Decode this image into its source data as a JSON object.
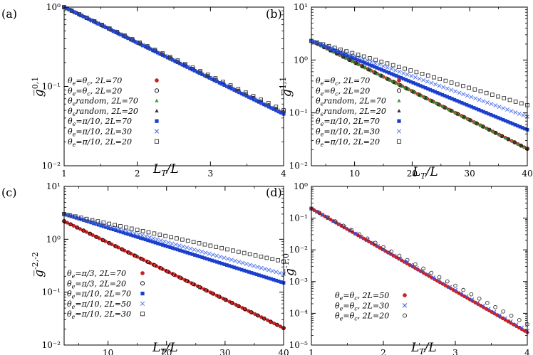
{
  "chart_data": [
    {
      "type": "scatter",
      "panel_label": "(a)",
      "ylabel": "g̅ 0,1",
      "xlabel": "L_T/L",
      "xscale": "linear",
      "yscale": "log",
      "xlim": [
        1,
        4
      ],
      "ylim": [
        0.01,
        1
      ],
      "xticks": [
        1,
        2,
        3,
        4
      ],
      "xtick_labels": [
        "1",
        "2",
        "3",
        "4"
      ],
      "yticks": [
        0.01,
        0.1,
        1
      ],
      "ytick_labels": [
        "10⁻²",
        "10⁻¹",
        "10⁰"
      ],
      "legend_position": "bottom-right",
      "series": [
        {
          "name": "θe=θc, 2L=70",
          "marker": "circle-filled",
          "color": "#cc1f1f",
          "x_start": 1,
          "x_end": 4,
          "y_start": 1.0,
          "y_end": 0.045,
          "n": 60
        },
        {
          "name": "θe=θc, 2L=20",
          "marker": "circle-open",
          "color": "#000000",
          "x_start": 1,
          "x_end": 4,
          "y_start": 1.0,
          "y_end": 0.047,
          "n": 30
        },
        {
          "name": "θe random, 2L=70",
          "marker": "triangle-filled",
          "color": "#2e9e2e",
          "x_start": 1,
          "x_end": 4,
          "y_start": 1.0,
          "y_end": 0.045,
          "n": 60
        },
        {
          "name": "θe random, 2L=20",
          "marker": "triangle-filled",
          "color": "#333333",
          "x_start": 1,
          "x_end": 4,
          "y_start": 1.0,
          "y_end": 0.047,
          "n": 30
        },
        {
          "name": "θe=π/10, 2L=70",
          "marker": "square-filled",
          "color": "#1a3fcc",
          "x_start": 1,
          "x_end": 4,
          "y_start": 1.0,
          "y_end": 0.045,
          "n": 90
        },
        {
          "name": "θe=π/10, 2L=30",
          "marker": "cross",
          "color": "#3355ee",
          "x_start": 1,
          "x_end": 4,
          "y_start": 1.0,
          "y_end": 0.046,
          "n": 40
        },
        {
          "name": "θe=π/10, 2L=20",
          "marker": "square-open",
          "color": "#333333",
          "x_start": 1,
          "x_end": 4,
          "y_start": 1.0,
          "y_end": 0.05,
          "n": 30
        }
      ],
      "legend": [
        {
          "lhs": "θe=θc",
          "rhs": "2L=70",
          "sym": "circle-filled",
          "color": "#cc1f1f"
        },
        {
          "lhs": "θe=θc",
          "rhs": "2L=20",
          "sym": "circle-open",
          "color": "#000000"
        },
        {
          "lhs": "θe:random",
          "rhs": "2L=70",
          "sym": "triangle-filled",
          "color": "#2e9e2e"
        },
        {
          "lhs": "θe:random",
          "rhs": "2L=20",
          "sym": "triangle-filled",
          "color": "#333333"
        },
        {
          "lhs": "θe=π/10",
          "rhs": "2L=70",
          "sym": "square-filled",
          "color": "#1a3fcc"
        },
        {
          "lhs": "θe=π/10",
          "rhs": "2L=30",
          "sym": "cross",
          "color": "#3355ee"
        },
        {
          "lhs": "θe=π/10",
          "rhs": "2L=20",
          "sym": "square-open",
          "color": "#333333"
        }
      ]
    },
    {
      "type": "scatter",
      "panel_label": "(b)",
      "ylabel": "g̅ 1,1",
      "xlabel": "L_T/L",
      "xscale": "linear",
      "yscale": "log",
      "xlim": [
        2.5,
        40
      ],
      "ylim": [
        0.01,
        10
      ],
      "xticks": [
        10,
        20,
        30,
        40
      ],
      "xtick_labels": [
        "10",
        "20",
        "30",
        "40"
      ],
      "yticks": [
        0.01,
        0.1,
        1,
        10
      ],
      "ytick_labels": [
        "10⁻²",
        "10⁻¹",
        "10⁰",
        "10¹"
      ],
      "legend_position": "bottom-center",
      "series": [
        {
          "name": "θe=θc, 2L=70",
          "marker": "circle-filled",
          "color": "#cc1f1f",
          "x_start": 2.5,
          "x_end": 40,
          "y_start": 2.3,
          "y_end": 0.021,
          "n": 70
        },
        {
          "name": "θe=θc, 2L=20",
          "marker": "circle-open",
          "color": "#000000",
          "x_start": 2.5,
          "x_end": 40,
          "y_start": 2.3,
          "y_end": 0.021,
          "n": 35
        },
        {
          "name": "θe random, 2L=70",
          "marker": "triangle-filled",
          "color": "#2e9e2e",
          "x_start": 2.5,
          "x_end": 40,
          "y_start": 2.3,
          "y_end": 0.021,
          "n": 70
        },
        {
          "name": "θe random, 2L=20",
          "marker": "triangle-filled",
          "color": "#333333",
          "x_start": 2.5,
          "x_end": 40,
          "y_start": 2.3,
          "y_end": 0.021,
          "n": 35
        },
        {
          "name": "θe=π/10, 2L=70",
          "marker": "square-filled",
          "color": "#1a3fcc",
          "x_start": 2.5,
          "x_end": 40,
          "y_start": 2.3,
          "y_end": 0.048,
          "n": 90
        },
        {
          "name": "θe=π/10, 2L=30",
          "marker": "cross",
          "color": "#5577ee",
          "x_start": 2.5,
          "x_end": 40,
          "y_start": 2.3,
          "y_end": 0.085,
          "n": 55
        },
        {
          "name": "θe=π/10, 2L=20",
          "marker": "square-open",
          "color": "#333333",
          "x_start": 2.5,
          "x_end": 40,
          "y_start": 2.3,
          "y_end": 0.14,
          "n": 38
        }
      ],
      "legend": [
        {
          "lhs": "θe=θc",
          "rhs": "2L=70",
          "sym": "circle-filled",
          "color": "#cc1f1f"
        },
        {
          "lhs": "θe=θc",
          "rhs": "2L=20",
          "sym": "circle-open",
          "color": "#000000"
        },
        {
          "lhs": "θe:random",
          "rhs": "2L=70",
          "sym": "triangle-filled",
          "color": "#2e9e2e"
        },
        {
          "lhs": "θe:random",
          "rhs": "2L=20",
          "sym": "triangle-filled",
          "color": "#333333"
        },
        {
          "lhs": "θe=π/10",
          "rhs": "2L=70",
          "sym": "square-filled",
          "color": "#1a3fcc"
        },
        {
          "lhs": "θe=π/10",
          "rhs": "2L=30",
          "sym": "cross",
          "color": "#5577ee"
        },
        {
          "lhs": "θe=π/10",
          "rhs": "2L=20",
          "sym": "square-open",
          "color": "#333333"
        }
      ]
    },
    {
      "type": "scatter",
      "panel_label": "(c)",
      "ylabel": "g̅ -2,-2",
      "xlabel": "L_T/L",
      "xscale": "linear",
      "yscale": "log",
      "xlim": [
        2.5,
        40
      ],
      "ylim": [
        0.01,
        10
      ],
      "xticks": [
        10,
        20,
        30,
        40
      ],
      "xtick_labels": [
        "10",
        "20",
        "30",
        "40"
      ],
      "yticks": [
        0.01,
        0.1,
        1,
        10
      ],
      "ytick_labels": [
        "10⁻²",
        "10⁻¹",
        "10⁰",
        "10¹"
      ],
      "legend_position": "bottom-center",
      "series": [
        {
          "name": "θe=π/3, 2L=70",
          "marker": "circle-filled",
          "color": "#cc1f1f",
          "x_start": 2.5,
          "x_end": 40,
          "y_start": 2.2,
          "y_end": 0.021,
          "n": 70
        },
        {
          "name": "θe=π/3, 2L=20",
          "marker": "circle-open",
          "color": "#000000",
          "x_start": 2.5,
          "x_end": 40,
          "y_start": 2.2,
          "y_end": 0.021,
          "n": 35
        },
        {
          "name": "θe=π/10, 2L=70",
          "marker": "square-filled",
          "color": "#1a3fcc",
          "x_start": 2.5,
          "x_end": 40,
          "y_start": 3.0,
          "y_end": 0.15,
          "n": 90
        },
        {
          "name": "θe=π/10, 2L=50",
          "marker": "cross",
          "color": "#5577ee",
          "x_start": 2.5,
          "x_end": 40,
          "y_start": 3.0,
          "y_end": 0.22,
          "n": 60
        },
        {
          "name": "θe=π/10, 2L=30",
          "marker": "square-open",
          "color": "#333333",
          "x_start": 2.5,
          "x_end": 40,
          "y_start": 3.0,
          "y_end": 0.38,
          "n": 40
        }
      ],
      "legend": [
        {
          "lhs": "θe=π/3",
          "rhs": "2L=70",
          "sym": "circle-filled",
          "color": "#cc1f1f"
        },
        {
          "lhs": "θe=π/3",
          "rhs": "2L=20",
          "sym": "circle-open",
          "color": "#000000"
        },
        {
          "lhs": "θe=π/10",
          "rhs": "2L=70",
          "sym": "square-filled",
          "color": "#1a3fcc"
        },
        {
          "lhs": "θe=π/10",
          "rhs": "2L=50",
          "sym": "cross",
          "color": "#5577ee"
        },
        {
          "lhs": "θe=π/10",
          "rhs": "2L=30",
          "sym": "square-open",
          "color": "#333333"
        }
      ]
    },
    {
      "type": "scatter",
      "panel_label": "(d)",
      "ylabel": "g̅ -1,0",
      "xlabel": "L_T/L",
      "xscale": "linear",
      "yscale": "log",
      "xlim": [
        1,
        4
      ],
      "ylim": [
        1e-05,
        1
      ],
      "xticks": [
        1,
        2,
        3,
        4
      ],
      "xtick_labels": [
        "1",
        "2",
        "3",
        "4"
      ],
      "yticks": [
        1e-05,
        0.0001,
        0.001,
        0.01,
        0.1,
        1
      ],
      "ytick_labels": [
        "10⁻⁵",
        "10⁻⁴",
        "10⁻³",
        "10⁻²",
        "10⁻¹",
        "10⁰"
      ],
      "legend_position": "bottom-center",
      "series": [
        {
          "name": "θe=θc, 2L=50",
          "marker": "circle-filled",
          "color": "#cc1f1f",
          "x_start": 1,
          "x_end": 4,
          "y_start": 0.2,
          "y_end": 2.5e-05,
          "n": 80
        },
        {
          "name": "θe=θc, 2L=30",
          "marker": "cross",
          "color": "#3355ee",
          "x_start": 1,
          "x_end": 4,
          "y_start": 0.2,
          "y_end": 2.8e-05,
          "n": 40
        },
        {
          "name": "θe=θc, 2L=20",
          "marker": "circle-open",
          "color": "#333333",
          "x_start": 1,
          "x_end": 4,
          "y_start": 0.2,
          "y_end": 4.5e-05,
          "n": 28
        }
      ],
      "legend": [
        {
          "lhs": "θe=θc",
          "rhs": "2L=50",
          "sym": "circle-filled",
          "color": "#cc1f1f"
        },
        {
          "lhs": "θe=θc",
          "rhs": "2L=30",
          "sym": "cross",
          "color": "#3355ee"
        },
        {
          "lhs": "θe=θc",
          "rhs": "2L=20",
          "sym": "circle-open",
          "color": "#333333"
        }
      ]
    }
  ]
}
